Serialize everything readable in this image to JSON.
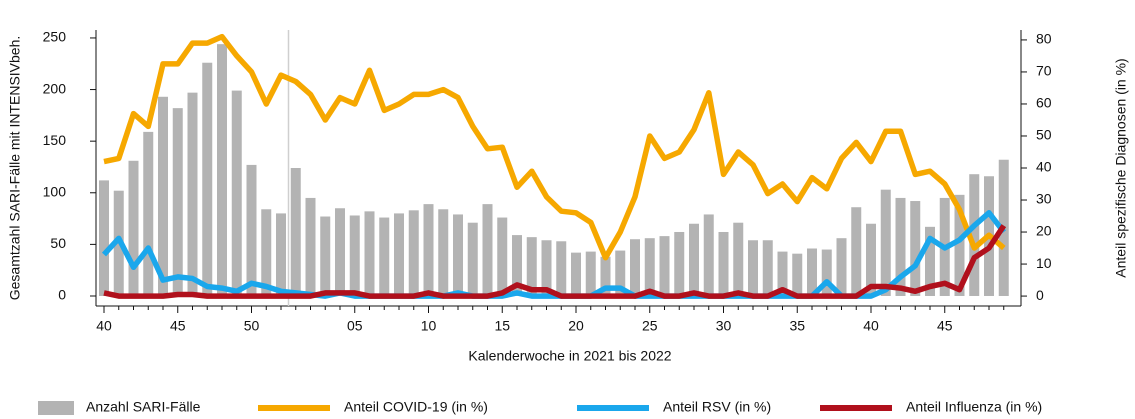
{
  "chart_data": {
    "type": "combo",
    "x_label": "Kalenderwoche in 2021 bis 2022",
    "y_label": "Gesamtzahl SARI-Fälle mit INTENSIVbeh.",
    "y2_label": "Anteil spezifische Diagnosen (in %)",
    "categories": [
      "40",
      null,
      null,
      null,
      null,
      "45",
      null,
      null,
      null,
      null,
      "50",
      null,
      null,
      null,
      null,
      null,
      null,
      "05",
      null,
      null,
      null,
      null,
      "10",
      null,
      null,
      null,
      null,
      "15",
      null,
      null,
      null,
      null,
      "20",
      null,
      null,
      null,
      null,
      "25",
      null,
      null,
      null,
      null,
      "30",
      null,
      null,
      null,
      null,
      "35",
      null,
      null,
      null,
      null,
      "40",
      null,
      null,
      null,
      null,
      "45",
      null,
      null,
      null,
      null
    ],
    "ylim": [
      -9.7,
      257.7
    ],
    "yticks": [
      0,
      50,
      100,
      150,
      200,
      250
    ],
    "y2lim": [
      -3.1,
      83.1
    ],
    "y2ticks": [
      0,
      10,
      20,
      30,
      40,
      50,
      60,
      70,
      80
    ],
    "series": [
      {
        "name": "Anzahl SARI-Fälle",
        "type": "bar",
        "color": "#b3b3b3",
        "axis": "y",
        "values": [
          112,
          102,
          131,
          159,
          193,
          182,
          197,
          226,
          244,
          199,
          127,
          84,
          80,
          124,
          95,
          77,
          85,
          78,
          82,
          76,
          80,
          83,
          89,
          84,
          79,
          71,
          89,
          76,
          59,
          57,
          54,
          53,
          42,
          43,
          38,
          44,
          55,
          56,
          58,
          62,
          70,
          79,
          62,
          71,
          54,
          54,
          43,
          41,
          46,
          45,
          56,
          86,
          70,
          103,
          95,
          92,
          67,
          95,
          98,
          118,
          116,
          132
        ]
      },
      {
        "name": "Anteil COVID-19 (in %)",
        "type": "line",
        "color": "#f6a800",
        "axis": "y2",
        "values": [
          42,
          43,
          57,
          53,
          72.5,
          72.5,
          79,
          79,
          81,
          75,
          70,
          60,
          69,
          67,
          63,
          55,
          62,
          60,
          70.5,
          58,
          60,
          63,
          63,
          64.5,
          62,
          53,
          46,
          46.5,
          34,
          39,
          31,
          26.5,
          26,
          23,
          12,
          20,
          31,
          50,
          43,
          45,
          52,
          63.5,
          38,
          45,
          41,
          32,
          35,
          29.5,
          37,
          33.5,
          43,
          48,
          42,
          51.5,
          51.5,
          38,
          39,
          35,
          27,
          15,
          19,
          15
        ]
      },
      {
        "name": "Anteil RSV (in %)",
        "type": "line",
        "color": "#1aa7ec",
        "axis": "y2",
        "values": [
          13,
          18,
          9,
          15,
          5,
          6,
          5.5,
          3,
          2.5,
          1.5,
          4,
          3,
          1.5,
          1,
          0.5,
          0,
          1,
          0,
          0,
          0,
          0,
          0,
          0,
          0,
          1,
          0,
          0,
          0,
          1,
          0,
          0,
          0,
          0,
          0,
          2.5,
          2.5,
          0,
          0,
          0,
          0,
          0,
          0,
          0,
          0,
          0,
          0,
          0,
          0,
          0,
          4.5,
          0,
          0,
          0,
          2,
          6,
          9.5,
          18,
          15,
          17.5,
          22,
          26,
          20
        ]
      },
      {
        "name": "Anteil Influenza (in %)",
        "type": "line",
        "color": "#b0101c",
        "axis": "y2",
        "values": [
          1,
          0,
          0,
          0,
          0,
          0.5,
          0.5,
          0,
          0,
          0,
          0,
          0,
          0,
          0,
          0,
          1,
          1,
          1,
          0,
          0,
          0,
          0,
          1,
          0,
          0,
          0,
          0,
          1,
          3.5,
          2,
          2,
          0,
          0,
          0,
          0,
          0,
          0,
          1.5,
          0,
          0,
          1,
          0,
          0,
          1,
          0,
          0,
          2,
          0,
          0,
          0,
          0,
          0,
          3,
          3,
          2.5,
          1.5,
          3,
          4,
          2,
          12,
          15,
          22
        ]
      }
    ]
  }
}
